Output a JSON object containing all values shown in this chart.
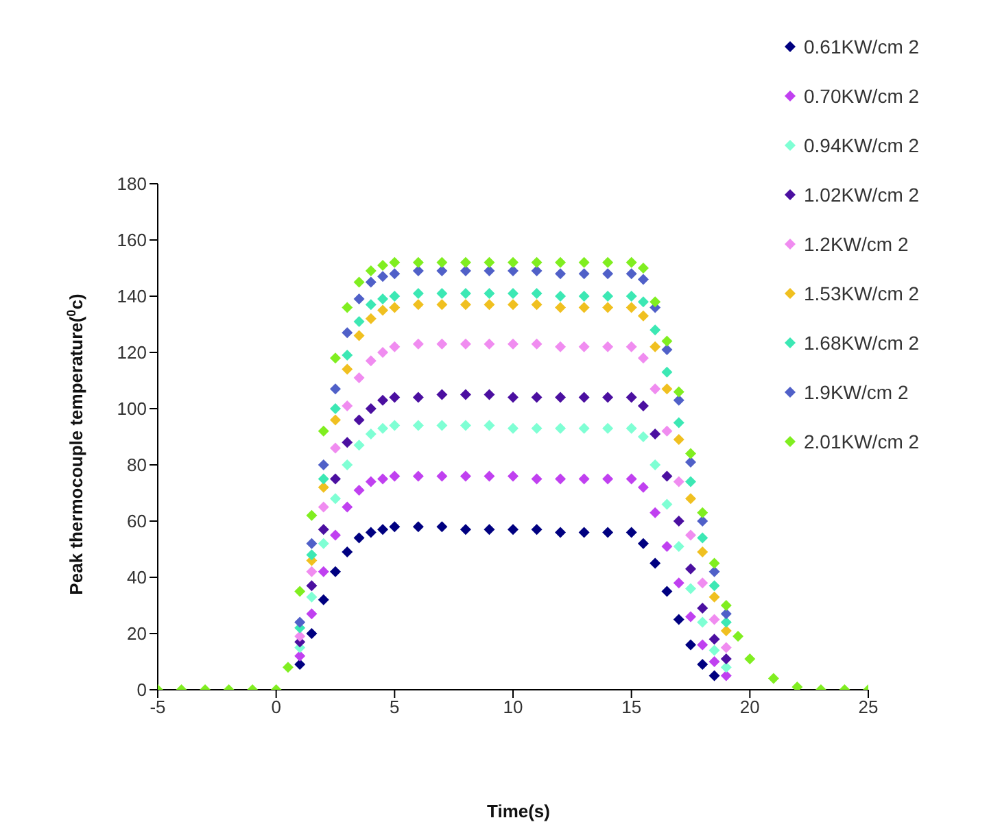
{
  "chart_data": {
    "type": "scatter",
    "xlabel": "Time(s)",
    "ylabel": "Peak thermocouple temperature($^{0}$c)",
    "marker": "diamond",
    "legend": "top right",
    "xlim": [
      -5,
      25
    ],
    "xticks": [
      -5,
      0,
      5,
      10,
      15,
      20,
      25
    ],
    "ylim": [
      0,
      180
    ],
    "yticks": [
      0,
      20,
      40,
      60,
      80,
      100,
      120,
      140,
      160,
      180
    ],
    "x": [
      -5,
      -4,
      -3,
      -2,
      -1,
      0,
      0.5,
      1,
      1.5,
      2,
      2.5,
      3,
      3.5,
      4,
      4.5,
      5,
      6,
      7,
      8,
      9,
      10,
      11,
      12,
      13,
      14,
      15,
      15.5,
      16,
      16.5,
      17,
      17.5,
      18,
      18.5,
      19,
      19.5,
      20,
      21,
      22,
      23,
      24,
      25
    ],
    "series": [
      {
        "name": "0.61KW/cm 2",
        "color": "#000080",
        "values": [
          null,
          null,
          null,
          null,
          null,
          null,
          null,
          9,
          20,
          32,
          42,
          49,
          54,
          56,
          57,
          58,
          58,
          58,
          57,
          57,
          57,
          57,
          56,
          56,
          56,
          56,
          52,
          45,
          35,
          25,
          16,
          9,
          5,
          null,
          null,
          null,
          null,
          null,
          null,
          null,
          null
        ]
      },
      {
        "name": "0.70KW/cm 2",
        "color": "#c040f0",
        "values": [
          null,
          null,
          null,
          null,
          null,
          null,
          null,
          12,
          27,
          42,
          55,
          65,
          71,
          74,
          75,
          76,
          76,
          76,
          76,
          76,
          76,
          75,
          75,
          75,
          75,
          75,
          72,
          63,
          51,
          38,
          26,
          16,
          10,
          5,
          null,
          null,
          null,
          null,
          null,
          null,
          null
        ]
      },
      {
        "name": "0.94KW/cm 2",
        "color": "#7fffd4",
        "values": [
          null,
          null,
          null,
          null,
          null,
          null,
          null,
          15,
          33,
          52,
          68,
          80,
          87,
          91,
          93,
          94,
          94,
          94,
          94,
          94,
          93,
          93,
          93,
          93,
          93,
          93,
          90,
          80,
          66,
          51,
          36,
          24,
          14,
          8,
          null,
          null,
          null,
          null,
          null,
          null,
          null
        ]
      },
      {
        "name": "1.02KW/cm 2",
        "color": "#4b0fa0",
        "values": [
          null,
          null,
          null,
          null,
          null,
          null,
          null,
          17,
          37,
          57,
          75,
          88,
          96,
          100,
          103,
          104,
          104,
          105,
          105,
          105,
          104,
          104,
          104,
          104,
          104,
          104,
          101,
          91,
          76,
          60,
          43,
          29,
          18,
          11,
          null,
          null,
          null,
          null,
          null,
          null,
          null
        ]
      },
      {
        "name": "1.2KW/cm 2",
        "color": "#f08cf0",
        "values": [
          null,
          null,
          null,
          null,
          null,
          null,
          null,
          19,
          42,
          65,
          86,
          101,
          111,
          117,
          120,
          122,
          123,
          123,
          123,
          123,
          123,
          123,
          122,
          122,
          122,
          122,
          118,
          107,
          92,
          74,
          55,
          38,
          25,
          15,
          null,
          null,
          null,
          null,
          null,
          null,
          null
        ]
      },
      {
        "name": "1.53KW/cm 2",
        "color": "#f0c020",
        "values": [
          null,
          null,
          null,
          null,
          null,
          null,
          null,
          null,
          46,
          72,
          96,
          114,
          126,
          132,
          135,
          136,
          137,
          137,
          137,
          137,
          137,
          137,
          136,
          136,
          136,
          136,
          133,
          122,
          107,
          89,
          68,
          49,
          33,
          21,
          null,
          null,
          null,
          null,
          null,
          null,
          null
        ]
      },
      {
        "name": "1.68KW/cm 2",
        "color": "#3ce8b4",
        "values": [
          null,
          null,
          null,
          null,
          null,
          null,
          null,
          22,
          48,
          75,
          100,
          119,
          131,
          137,
          139,
          140,
          141,
          141,
          141,
          141,
          141,
          141,
          140,
          140,
          140,
          140,
          138,
          128,
          113,
          95,
          74,
          54,
          37,
          24,
          null,
          null,
          null,
          null,
          null,
          null,
          null
        ]
      },
      {
        "name": "1.9KW/cm 2",
        "color": "#5060c8",
        "values": [
          null,
          null,
          null,
          null,
          null,
          null,
          null,
          24,
          52,
          80,
          107,
          127,
          139,
          145,
          147,
          148,
          149,
          149,
          149,
          149,
          149,
          149,
          148,
          148,
          148,
          148,
          146,
          136,
          121,
          103,
          81,
          60,
          42,
          27,
          null,
          null,
          null,
          null,
          null,
          null,
          null
        ]
      },
      {
        "name": "2.01KW/cm 2",
        "color": "#80ee20",
        "values": [
          0,
          0,
          0,
          0,
          0,
          0,
          8,
          35,
          62,
          92,
          118,
          136,
          145,
          149,
          151,
          152,
          152,
          152,
          152,
          152,
          152,
          152,
          152,
          152,
          152,
          152,
          150,
          138,
          124,
          106,
          84,
          63,
          45,
          30,
          19,
          11,
          4,
          1,
          0,
          0,
          0
        ]
      }
    ]
  }
}
